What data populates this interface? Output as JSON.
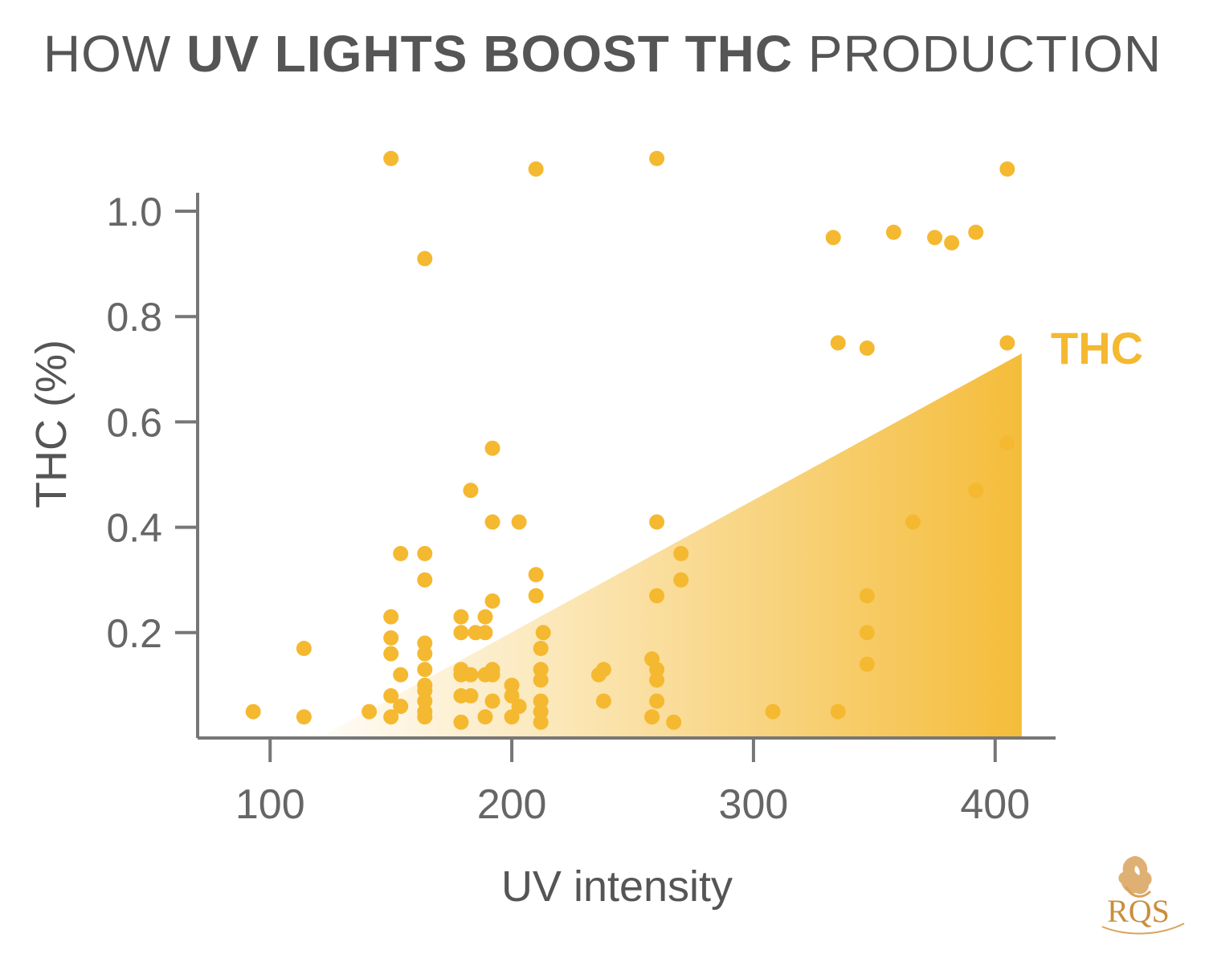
{
  "title": {
    "part1": "HOW ",
    "bold": "UV LIGHTS BOOST THC",
    "part2": " PRODUCTION"
  },
  "logo_text": "RQS",
  "colors": {
    "accent": "#f4b930",
    "axis": "#777777",
    "text": "#555555"
  },
  "chart_data": {
    "type": "scatter",
    "title": "HOW UV LIGHTS BOOST THC PRODUCTION",
    "xlabel": "UV intensity",
    "ylabel": "THC (%)",
    "xlim": [
      70,
      425
    ],
    "ylim": [
      0.0,
      1.0
    ],
    "xticks": [
      100,
      200,
      300,
      400
    ],
    "xtick_labels": [
      "100",
      "200",
      "300",
      "400"
    ],
    "yticks": [
      0.2,
      0.4,
      0.6,
      0.8,
      1.0
    ],
    "ytick_labels": [
      "0.2",
      "0.4",
      "0.6",
      "0.8",
      "1.0"
    ],
    "grid": false,
    "trend_area": {
      "label": "THC",
      "start": [
        120,
        0.0
      ],
      "end": [
        411,
        0.73
      ]
    },
    "points": [
      [
        93,
        0.05
      ],
      [
        114,
        0.17
      ],
      [
        114,
        0.04
      ],
      [
        141,
        0.05
      ],
      [
        150,
        1.1
      ],
      [
        150,
        0.23
      ],
      [
        150,
        0.19
      ],
      [
        150,
        0.16
      ],
      [
        150,
        0.08
      ],
      [
        150,
        0.04
      ],
      [
        154,
        0.35
      ],
      [
        154,
        0.12
      ],
      [
        154,
        0.06
      ],
      [
        164,
        0.91
      ],
      [
        164,
        0.35
      ],
      [
        164,
        0.3
      ],
      [
        164,
        0.18
      ],
      [
        164,
        0.16
      ],
      [
        164,
        0.13
      ],
      [
        164,
        0.1
      ],
      [
        164,
        0.09
      ],
      [
        164,
        0.07
      ],
      [
        164,
        0.05
      ],
      [
        164,
        0.04
      ],
      [
        179,
        0.23
      ],
      [
        179,
        0.2
      ],
      [
        179,
        0.13
      ],
      [
        179,
        0.12
      ],
      [
        179,
        0.08
      ],
      [
        179,
        0.03
      ],
      [
        183,
        0.47
      ],
      [
        183,
        0.12
      ],
      [
        183,
        0.08
      ],
      [
        185,
        0.2
      ],
      [
        189,
        0.23
      ],
      [
        189,
        0.2
      ],
      [
        189,
        0.12
      ],
      [
        189,
        0.04
      ],
      [
        192,
        0.55
      ],
      [
        192,
        0.41
      ],
      [
        192,
        0.26
      ],
      [
        192,
        0.13
      ],
      [
        192,
        0.12
      ],
      [
        192,
        0.07
      ],
      [
        200,
        0.1
      ],
      [
        200,
        0.08
      ],
      [
        200,
        0.04
      ],
      [
        203,
        0.41
      ],
      [
        203,
        0.06
      ],
      [
        210,
        1.08
      ],
      [
        210,
        0.31
      ],
      [
        210,
        0.27
      ],
      [
        212,
        0.17
      ],
      [
        212,
        0.13
      ],
      [
        212,
        0.11
      ],
      [
        212,
        0.07
      ],
      [
        212,
        0.05
      ],
      [
        212,
        0.03
      ],
      [
        213,
        0.2
      ],
      [
        236,
        0.12
      ],
      [
        238,
        0.13
      ],
      [
        238,
        0.07
      ],
      [
        258,
        0.15
      ],
      [
        258,
        0.04
      ],
      [
        260,
        1.1
      ],
      [
        260,
        0.41
      ],
      [
        260,
        0.27
      ],
      [
        260,
        0.13
      ],
      [
        260,
        0.11
      ],
      [
        260,
        0.07
      ],
      [
        267,
        0.03
      ],
      [
        270,
        0.35
      ],
      [
        270,
        0.3
      ],
      [
        308,
        0.05
      ],
      [
        333,
        0.95
      ],
      [
        335,
        0.75
      ],
      [
        335,
        0.05
      ],
      [
        347,
        0.74
      ],
      [
        347,
        0.27
      ],
      [
        347,
        0.2
      ],
      [
        347,
        0.14
      ],
      [
        358,
        0.96
      ],
      [
        366,
        0.41
      ],
      [
        375,
        0.95
      ],
      [
        382,
        0.94
      ],
      [
        392,
        0.96
      ],
      [
        392,
        0.47
      ],
      [
        405,
        1.08
      ],
      [
        405,
        0.75
      ],
      [
        405,
        0.56
      ]
    ]
  }
}
